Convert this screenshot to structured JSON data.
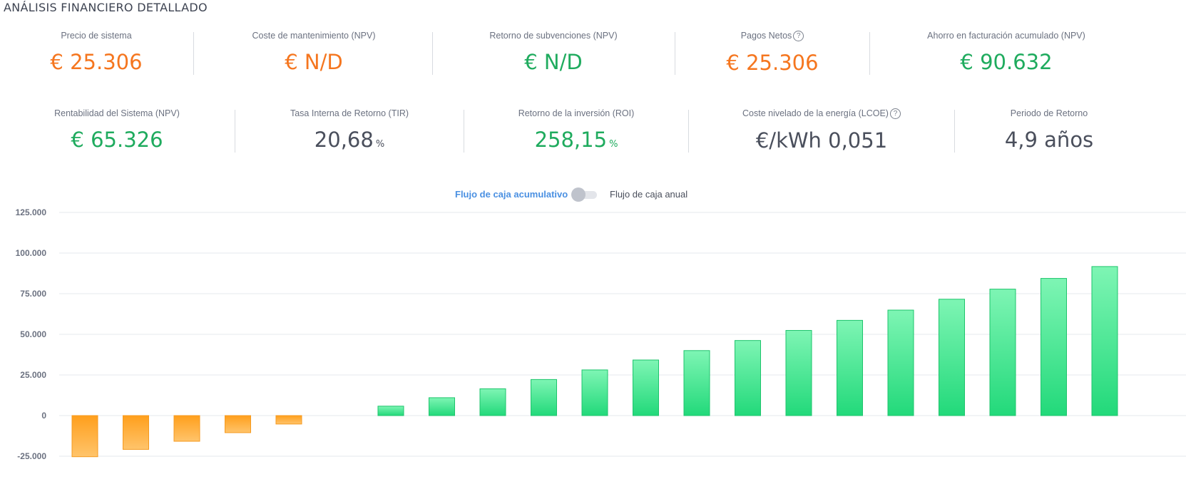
{
  "page_title": "ANÁLISIS FINANCIERO DETALLADO",
  "kpis_row1": [
    {
      "label": "Precio de sistema",
      "value": "€ 25.306",
      "color": "#f5761f"
    },
    {
      "label": "Coste de mantenimiento (NPV)",
      "value": "€ N/D",
      "color": "#f5761f"
    },
    {
      "label": "Retorno de subvenciones (NPV)",
      "value": "€ N/D",
      "color": "#1fab5e"
    },
    {
      "label": "Pagos Netos",
      "value": "€ 25.306",
      "color": "#f5761f",
      "help_icon": "?"
    },
    {
      "label": "Ahorro en facturación acumulado (NPV)",
      "value": "€ 90.632",
      "color": "#1fab5e"
    }
  ],
  "kpis_row2": [
    {
      "label": "Rentabilidad del Sistema (NPV)",
      "value": "€ 65.326",
      "color": "#1fab5e"
    },
    {
      "label": "Tasa Interna de Retorno (TIR)",
      "value": "20,68",
      "unit": "%",
      "color": "#4a4f5c"
    },
    {
      "label": "Retorno de la inversión (ROI)",
      "value": "258,15",
      "unit": "%",
      "color": "#1fab5e"
    },
    {
      "label": "Coste nivelado de la energía (LCOE)",
      "value": "€/kWh 0,051",
      "color": "#4a4f5c",
      "help_icon": "?"
    },
    {
      "label": "Periodo de Retorno",
      "value": "4,9 años",
      "color": "#4a4f5c"
    }
  ],
  "toggle": {
    "left_label": "Flujo de caja acumulativo",
    "right_label": "Flujo de caja anual",
    "state": "off"
  },
  "colors": {
    "negative_bar_top": "#ff9f1c",
    "negative_bar_bottom": "#ffc46b",
    "positive_bar_top": "#7ef5b4",
    "positive_bar_bottom": "#22d97a",
    "grid": "#e6e8ec"
  },
  "chart_data": {
    "type": "bar",
    "ylim": [
      -25000,
      125000
    ],
    "yticks": [
      125000,
      100000,
      75000,
      50000,
      25000,
      0,
      -25000
    ],
    "ytick_labels": [
      "125.000",
      "100.000",
      "75.000",
      "50.000",
      "25.000",
      "0",
      "-25.000"
    ],
    "grid": true,
    "values": [
      -25306,
      -20800,
      -15800,
      -10500,
      -5200,
      0,
      5800,
      11000,
      16500,
      22200,
      28100,
      34200,
      40000,
      46200,
      52400,
      58600,
      64900,
      71600,
      77800,
      84400,
      91700
    ]
  }
}
